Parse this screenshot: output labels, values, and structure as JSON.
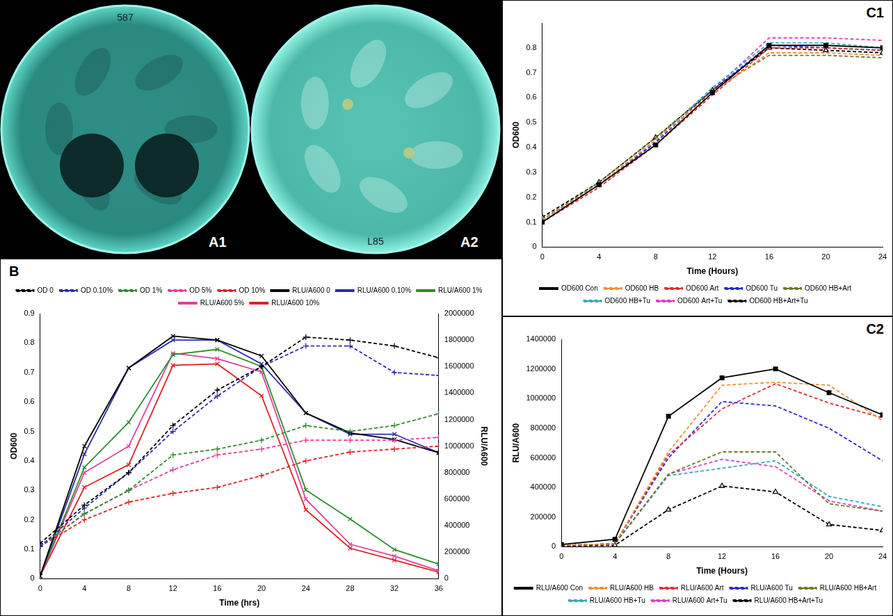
{
  "photos": [
    {
      "panel": "A1",
      "plate_text": "587"
    },
    {
      "panel": "A2",
      "plate_text": "L85"
    }
  ],
  "chart_data": [
    {
      "panel": "B",
      "type": "line",
      "x_label": "Time (hrs)",
      "y_label": "OD600",
      "y2_label": "RLU/A600",
      "x": [
        0,
        4,
        8,
        12,
        16,
        20,
        24,
        28,
        32,
        36
      ],
      "xlim": [
        0,
        36
      ],
      "xticks": [
        0,
        4,
        8,
        12,
        16,
        20,
        24,
        28,
        32,
        36
      ],
      "ylim": [
        0,
        0.9
      ],
      "yticks": [
        0,
        0.1,
        0.2,
        0.3,
        0.4,
        0.5,
        0.6,
        0.7,
        0.8,
        0.9
      ],
      "y2lim": [
        0,
        2000000
      ],
      "y2ticks": [
        0,
        200000,
        400000,
        600000,
        800000,
        1000000,
        1200000,
        1400000,
        1600000,
        1800000,
        2000000
      ],
      "grid": false,
      "legend": "top",
      "series": [
        {
          "name": "OD 0",
          "color": "#000000",
          "line_style": "dashed",
          "marker": "cross",
          "values": [
            0.12,
            0.25,
            0.36,
            0.52,
            0.64,
            0.72,
            0.82,
            0.81,
            0.79,
            0.75
          ]
        },
        {
          "name": "OD 0.10%",
          "color": "#2b2bb0",
          "line_style": "dashed",
          "marker": "cross",
          "values": [
            0.11,
            0.24,
            0.36,
            0.5,
            0.62,
            0.72,
            0.79,
            0.79,
            0.7,
            0.69
          ]
        },
        {
          "name": "OD 1%",
          "color": "#2e8b2e",
          "line_style": "dashed",
          "marker": "cross",
          "values": [
            0.11,
            0.22,
            0.3,
            0.42,
            0.44,
            0.47,
            0.52,
            0.5,
            0.52,
            0.56
          ]
        },
        {
          "name": "OD 5%",
          "color": "#e0409a",
          "line_style": "dashed",
          "marker": "cross",
          "values": [
            0.11,
            0.22,
            0.3,
            0.37,
            0.42,
            0.44,
            0.47,
            0.47,
            0.47,
            0.48
          ]
        },
        {
          "name": "OD 10%",
          "color": "#e02020",
          "line_style": "dashed",
          "marker": "cross",
          "values": [
            0.11,
            0.2,
            0.26,
            0.29,
            0.31,
            0.35,
            0.4,
            0.43,
            0.44,
            0.45
          ]
        },
        {
          "name": "RLU/A600 0",
          "color": "#000000",
          "line_style": "solid",
          "marker": "x",
          "axis": "y2",
          "values": [
            20000,
            1000000,
            1590000,
            1830000,
            1800000,
            1680000,
            1250000,
            1100000,
            1050000,
            950000
          ]
        },
        {
          "name": "RLU/A600 0.10%",
          "color": "#2b2bb0",
          "line_style": "solid",
          "marker": "x",
          "axis": "y2",
          "values": [
            20000,
            940000,
            1590000,
            1800000,
            1800000,
            1620000,
            1250000,
            1090000,
            1090000,
            950000
          ]
        },
        {
          "name": "RLU/A600 1%",
          "color": "#2e8b2e",
          "line_style": "solid",
          "marker": "x",
          "axis": "y2",
          "values": [
            20000,
            840000,
            1180000,
            1690000,
            1730000,
            1600000,
            670000,
            450000,
            220000,
            110000
          ]
        },
        {
          "name": "RLU/A600 5%",
          "color": "#e0409a",
          "line_style": "solid",
          "marker": "x",
          "axis": "y2",
          "values": [
            20000,
            800000,
            1000000,
            1700000,
            1660000,
            1560000,
            600000,
            260000,
            170000,
            60000
          ]
        },
        {
          "name": "RLU/A600 10%",
          "color": "#e02020",
          "line_style": "solid",
          "marker": "x",
          "axis": "y2",
          "values": [
            20000,
            690000,
            860000,
            1610000,
            1620000,
            1380000,
            520000,
            230000,
            140000,
            50000
          ]
        }
      ]
    },
    {
      "panel": "C1",
      "type": "line",
      "x_label": "Time (Hours)",
      "y_label": "OD600",
      "x": [
        0,
        4,
        8,
        12,
        16,
        20,
        24
      ],
      "xlim": [
        0,
        24
      ],
      "xticks": [
        0,
        4,
        8,
        12,
        16,
        20,
        24
      ],
      "ylim": [
        0,
        0.9
      ],
      "yticks": [
        0,
        0.1,
        0.2,
        0.3,
        0.4,
        0.5,
        0.6,
        0.7,
        0.8
      ],
      "grid": false,
      "legend": "bottom",
      "series": [
        {
          "name": "OD600 Con",
          "color": "#000000",
          "line_style": "solid",
          "marker": "square",
          "values": [
            0.1,
            0.25,
            0.41,
            0.62,
            0.81,
            0.81,
            0.8
          ]
        },
        {
          "name": "OD600 HB",
          "color": "#e8923a",
          "line_style": "dashed",
          "marker": "none",
          "values": [
            0.11,
            0.25,
            0.43,
            0.62,
            0.78,
            0.78,
            0.77
          ]
        },
        {
          "name": "OD600 Art",
          "color": "#e03030",
          "line_style": "dashed",
          "marker": "none",
          "values": [
            0.1,
            0.24,
            0.41,
            0.61,
            0.8,
            0.8,
            0.79
          ]
        },
        {
          "name": "OD600 Tu",
          "color": "#2a2ad0",
          "line_style": "dashed",
          "marker": "none",
          "values": [
            0.11,
            0.25,
            0.42,
            0.63,
            0.81,
            0.8,
            0.79
          ]
        },
        {
          "name": "OD600 HB+Art",
          "color": "#6b7a2a",
          "line_style": "dashed",
          "marker": "none",
          "values": [
            0.11,
            0.26,
            0.44,
            0.63,
            0.77,
            0.77,
            0.76
          ]
        },
        {
          "name": "OD600 HB+Tu",
          "color": "#3aa8b8",
          "line_style": "dashed",
          "marker": "none",
          "values": [
            0.11,
            0.25,
            0.43,
            0.64,
            0.82,
            0.82,
            0.8
          ]
        },
        {
          "name": "OD600 Art+Tu",
          "color": "#e040c0",
          "line_style": "dashed",
          "marker": "none",
          "values": [
            0.11,
            0.25,
            0.42,
            0.63,
            0.84,
            0.84,
            0.83
          ]
        },
        {
          "name": "OD600 HB+Art+Tu",
          "color": "#000000",
          "line_style": "dashed",
          "marker": "triangle",
          "values": [
            0.12,
            0.26,
            0.44,
            0.63,
            0.8,
            0.79,
            0.78
          ]
        }
      ]
    },
    {
      "panel": "C2",
      "type": "line",
      "x_label": "Time (Hours)",
      "y_label": "RLU/A600",
      "x": [
        0,
        4,
        8,
        12,
        16,
        20,
        24
      ],
      "xlim": [
        0,
        24
      ],
      "xticks": [
        0,
        4,
        8,
        12,
        16,
        20,
        24
      ],
      "ylim": [
        0,
        1400000
      ],
      "yticks": [
        0,
        200000,
        400000,
        600000,
        800000,
        1000000,
        1200000,
        1400000
      ],
      "grid": false,
      "legend": "bottom",
      "series": [
        {
          "name": "RLU/A600 Con",
          "color": "#000000",
          "line_style": "solid",
          "marker": "square",
          "values": [
            15000,
            50000,
            880000,
            1140000,
            1200000,
            1040000,
            890000
          ]
        },
        {
          "name": "RLU/A600 HB",
          "color": "#e8923a",
          "line_style": "dashed",
          "marker": "none",
          "values": [
            10000,
            20000,
            640000,
            1090000,
            1110000,
            1090000,
            850000
          ]
        },
        {
          "name": "RLU/A600 Art",
          "color": "#e03030",
          "line_style": "dashed",
          "marker": "none",
          "values": [
            10000,
            20000,
            620000,
            930000,
            1100000,
            970000,
            870000
          ]
        },
        {
          "name": "RLU/A600 Tu",
          "color": "#2a2ad0",
          "line_style": "dashed",
          "marker": "none",
          "values": [
            10000,
            20000,
            600000,
            980000,
            950000,
            800000,
            580000
          ]
        },
        {
          "name": "RLU/A600 HB+Art",
          "color": "#6b7a2a",
          "line_style": "dashed",
          "marker": "none",
          "values": [
            10000,
            20000,
            490000,
            640000,
            640000,
            290000,
            240000
          ]
        },
        {
          "name": "RLU/A600 HB+Tu",
          "color": "#3aa8b8",
          "line_style": "dashed",
          "marker": "none",
          "values": [
            10000,
            20000,
            480000,
            530000,
            580000,
            340000,
            270000
          ]
        },
        {
          "name": "RLU/A600 Art+Tu",
          "color": "#e040c0",
          "line_style": "dashed",
          "marker": "none",
          "values": [
            10000,
            20000,
            490000,
            590000,
            540000,
            310000,
            240000
          ]
        },
        {
          "name": "RLU/A600 HB+Art+Tu",
          "color": "#000000",
          "line_style": "dashed",
          "marker": "triangle",
          "values": [
            5000,
            10000,
            250000,
            410000,
            370000,
            150000,
            110000
          ]
        }
      ]
    }
  ]
}
